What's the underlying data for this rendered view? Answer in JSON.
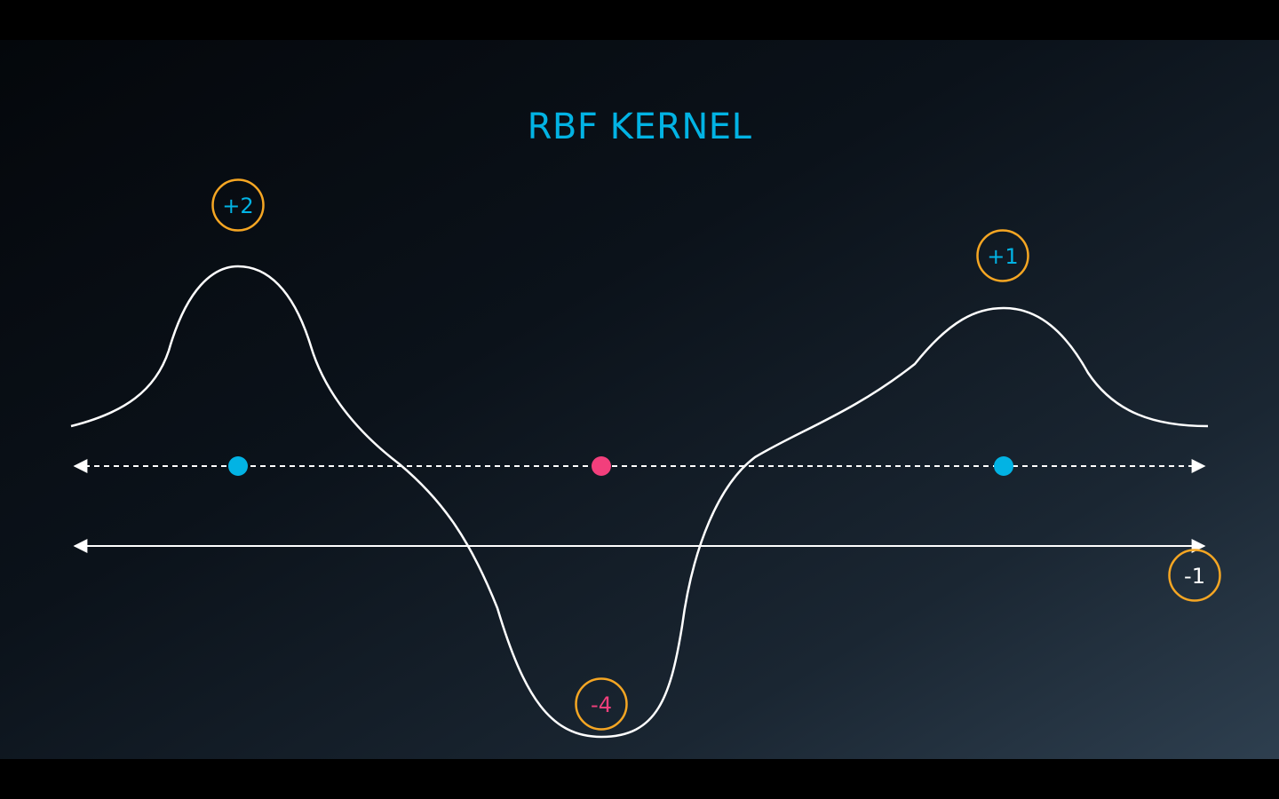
{
  "title": "RBF KERNEL",
  "points": [
    {
      "id": "left",
      "color_name": "blue"
    },
    {
      "id": "middle",
      "color_name": "pink"
    },
    {
      "id": "right",
      "color_name": "blue"
    }
  ],
  "weights": [
    {
      "id": "left",
      "text": "+2"
    },
    {
      "id": "middle",
      "text": "-4"
    },
    {
      "id": "right",
      "text": "+1"
    },
    {
      "id": "threshold",
      "text": "-1"
    }
  ],
  "colors": {
    "title": "#02b3e4",
    "blue_point": "#02b3e4",
    "pink_point": "#f23f7c",
    "circle_border": "#f5a623",
    "curve": "#ffffff",
    "threshold_label": "#ffffff"
  }
}
